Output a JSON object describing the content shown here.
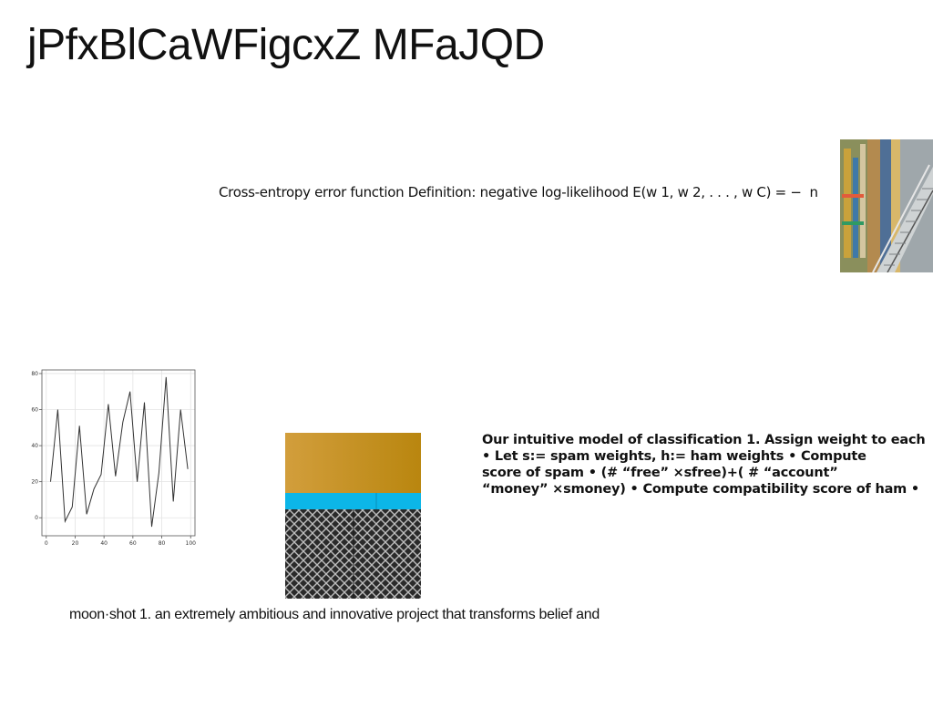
{
  "title": "jPfxBlCaWFigcxZ MFaJQD",
  "cross_entropy_text": "Cross-entropy error function Definition: negative log-likelihood E(w 1, w 2, . . . , w C) = − ￼ n ￼",
  "classification_text": "Our intuitive model of classification 1. Assign weight to each\n• Let s:= spam weights, h:= ham weights • Compute\nscore of spam • (# “free” ×sfree)+( # “account”\n“money” ×smoney) • Compute compatibility score of ham •",
  "moonshot_text": "moon·shot 1. an extremely ambitious and innovative project that transforms belief and",
  "chart_data": {
    "type": "line",
    "title": "",
    "xlabel": "",
    "ylabel": "",
    "x": [
      3,
      8,
      13,
      18,
      23,
      28,
      33,
      38,
      43,
      48,
      53,
      58,
      63,
      68,
      73,
      78,
      83,
      88,
      93,
      98
    ],
    "y": [
      20,
      60,
      -2,
      6,
      51,
      2,
      16,
      24,
      63,
      23,
      53,
      70,
      20,
      64,
      -5,
      25,
      78,
      9,
      60,
      27
    ],
    "xlim": [
      -3,
      103
    ],
    "ylim": [
      -10,
      82
    ],
    "xticks": [
      0,
      20,
      40,
      60,
      80,
      100
    ],
    "yticks": [
      0,
      20,
      40,
      60,
      80
    ],
    "grid": true,
    "line_color": "#333333"
  }
}
